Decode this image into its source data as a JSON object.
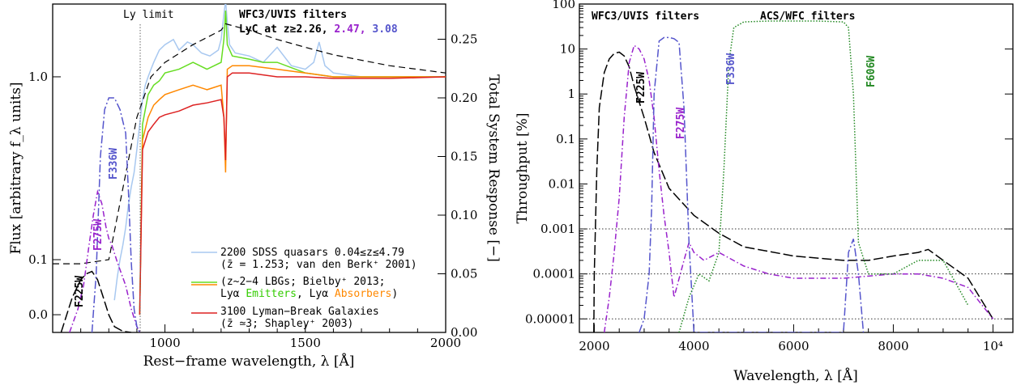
{
  "chart_data": [
    {
      "type": "line",
      "title": "",
      "xlabel": "Rest−frame wavelength, λ  [Å]",
      "ylabel": "Flux  [arbitrary f_λ units]",
      "ylabel_right": "Total System Response  [−]",
      "xlim": [
        600,
        2000
      ],
      "ylim_log": [
        0.04,
        2.5
      ],
      "ylim_right": [
        0,
        0.28
      ],
      "x_ticks": [
        "1000",
        "1500",
        "2000"
      ],
      "y_ticks": [
        "0.0",
        "0.1",
        "1.0"
      ],
      "y_ticks_right": [
        "0.00",
        "0.05",
        "0.10",
        "0.15",
        "0.20",
        "0.25"
      ],
      "annotations": {
        "ly_limit": "Ly limit",
        "filters_title": "WFC3/UVIS filters",
        "lyc_prefix": "LyC at z≥",
        "z1": "2.26,",
        "z2": "2.47,",
        "z3": "3.08",
        "f225w": "F225W",
        "f275w": "F275W",
        "f336w": "F336W"
      },
      "legend": [
        {
          "line1": "2200 SDSS quasars 0.04≤z≤4.79",
          "line2": "(z̄ = 1.253; van den Berk⁺ 2001)",
          "color": "#a8c8f0"
        },
        {
          "line1": "(z~2−4 LBGs; Bielby⁺ 2013;",
          "line2a": "Lyα ",
          "line2b": "Emitters",
          "line2c": ", Lyα ",
          "line2d": "Absorbers",
          "line2e": ")",
          "color": "#66dd22",
          "color2": "#ff8800"
        },
        {
          "line1": "3100 Lyman−Break Galaxies",
          "line2": "(z̄ ≃3; Shapley⁺ 2003)",
          "color": "#dd2222"
        }
      ],
      "series": [
        {
          "name": "2200 SDSS quasars",
          "color": "#a8c8f0",
          "x": [
            820,
            830,
            840,
            850,
            860,
            870,
            880,
            890,
            900,
            910,
            920,
            930,
            940,
            950,
            960,
            980,
            1000,
            1030,
            1050,
            1080,
            1100,
            1130,
            1160,
            1190,
            1200,
            1210,
            1216,
            1222,
            1230,
            1250,
            1300,
            1350,
            1400,
            1450,
            1500,
            1530,
            1549,
            1570,
            1600,
            1700,
            1800,
            1900,
            2000
          ],
          "y": [
            0.06,
            0.08,
            0.1,
            0.12,
            0.15,
            0.2,
            0.25,
            0.3,
            0.4,
            0.55,
            0.75,
            0.9,
            1.0,
            1.1,
            1.2,
            1.4,
            1.5,
            1.6,
            1.4,
            1.55,
            1.5,
            1.35,
            1.3,
            1.4,
            1.6,
            2.2,
            2.6,
            2.0,
            1.5,
            1.35,
            1.3,
            1.2,
            1.45,
            1.15,
            1.1,
            1.2,
            1.55,
            1.15,
            1.05,
            1.0,
            1.0,
            1.0,
            1.0
          ]
        },
        {
          "name": "Lyα Emitters",
          "color": "#66dd22",
          "x": [
            910,
            920,
            940,
            960,
            980,
            1000,
            1050,
            1100,
            1150,
            1200,
            1210,
            1216,
            1222,
            1240,
            1300,
            1350,
            1400,
            1500,
            1600,
            1700,
            1800,
            1900,
            2000
          ],
          "y": [
            0.05,
            0.55,
            0.8,
            0.9,
            0.95,
            1.05,
            1.1,
            1.2,
            1.1,
            1.2,
            1.6,
            2.3,
            1.5,
            1.3,
            1.25,
            1.2,
            1.2,
            1.05,
            1.0,
            1.0,
            1.0,
            1.0,
            1.0
          ]
        },
        {
          "name": "Lyα Absorbers",
          "color": "#ff8800",
          "x": [
            910,
            920,
            940,
            960,
            980,
            1000,
            1050,
            1100,
            1150,
            1200,
            1210,
            1216,
            1222,
            1240,
            1300,
            1400,
            1500,
            1600,
            1700,
            1800,
            1900,
            2000
          ],
          "y": [
            0.05,
            0.45,
            0.6,
            0.7,
            0.75,
            0.8,
            0.85,
            0.9,
            0.85,
            0.9,
            0.6,
            0.3,
            1.1,
            1.15,
            1.15,
            1.1,
            1.05,
            1.0,
            1.0,
            1.0,
            1.0,
            1.0
          ]
        },
        {
          "name": "3100 Lyman-Break Galaxies",
          "color": "#dd2222",
          "x": [
            910,
            920,
            940,
            960,
            980,
            1000,
            1050,
            1100,
            1150,
            1200,
            1210,
            1216,
            1222,
            1240,
            1300,
            1400,
            1500,
            1600,
            1700,
            1800,
            1900,
            2000
          ],
          "y": [
            0.05,
            0.4,
            0.5,
            0.55,
            0.6,
            0.62,
            0.65,
            0.7,
            0.72,
            0.75,
            0.6,
            0.35,
            1.0,
            1.05,
            1.05,
            1.0,
            1.0,
            0.98,
            0.98,
            0.98,
            0.99,
            1.0
          ]
        },
        {
          "name": "power-law",
          "color": "#000000",
          "x": [
            600,
            700,
            800,
            900,
            950,
            1000,
            1100,
            1200,
            1216,
            1300,
            1400,
            1500,
            1600,
            1800,
            2000
          ],
          "y": [
            0.095,
            0.095,
            0.1,
            0.6,
            1.0,
            1.2,
            1.5,
            1.8,
            1.95,
            1.8,
            1.6,
            1.45,
            1.32,
            1.15,
            1.05
          ]
        },
        {
          "name": "F225W",
          "color": "#000000",
          "axis": "right",
          "x": [
            630,
            650,
            670,
            700,
            720,
            740,
            760,
            780,
            800,
            820,
            850,
            880
          ],
          "y": [
            0.0,
            0.015,
            0.03,
            0.045,
            0.05,
            0.052,
            0.045,
            0.03,
            0.015,
            0.005,
            0.001,
            0.0
          ]
        },
        {
          "name": "F275W",
          "color": "#9922cc",
          "axis": "right",
          "x": [
            660,
            690,
            710,
            730,
            745,
            760,
            775,
            790,
            800,
            810,
            830,
            860,
            880,
            900,
            912
          ],
          "y": [
            0.0,
            0.02,
            0.04,
            0.075,
            0.1,
            0.12,
            0.11,
            0.09,
            0.08,
            0.075,
            0.06,
            0.04,
            0.02,
            0.005,
            0.0
          ]
        },
        {
          "name": "F336W",
          "color": "#5555cc",
          "axis": "right",
          "x": [
            740,
            755,
            770,
            785,
            800,
            820,
            840,
            860,
            870,
            880,
            890,
            900,
            910
          ],
          "y": [
            0.0,
            0.05,
            0.15,
            0.19,
            0.2,
            0.2,
            0.19,
            0.17,
            0.12,
            0.06,
            0.02,
            0.005,
            0.0
          ]
        }
      ]
    },
    {
      "type": "line",
      "title": "",
      "xlabel": "Wavelength, λ  [Å]",
      "ylabel": "Throughput  [%]",
      "xlim": [
        1700,
        10400
      ],
      "ylim_log": [
        5e-06,
        100
      ],
      "x_ticks": [
        "2000",
        "4000",
        "6000",
        "8000",
        "10⁴"
      ],
      "y_ticks": [
        "0.00001",
        "0.0001",
        "0.001",
        "0.01",
        "0.1",
        "1",
        "10",
        "100"
      ],
      "hlines": [
        1e-05,
        0.0001,
        0.001
      ],
      "annotations": {
        "wfc3": "WFC3/UVIS filters",
        "acs": "ACS/WFC filters",
        "f225w": "F225W",
        "f275w": "F275W",
        "f336w": "F336W",
        "f606w": "F606W"
      },
      "series": [
        {
          "name": "F225W",
          "color": "#000000",
          "x": [
            1990,
            2000,
            2050,
            2100,
            2200,
            2300,
            2400,
            2500,
            2600,
            2700,
            2800,
            3000,
            3200,
            3500,
            4000,
            4500,
            5000,
            6000,
            7000,
            7500,
            8000,
            8500,
            8700,
            9000,
            9500,
            10000
          ],
          "y": [
            5e-06,
            0.0001,
            0.02,
            0.5,
            3,
            6,
            8,
            8.5,
            7,
            4,
            1.5,
            0.3,
            0.05,
            0.008,
            0.002,
            0.0008,
            0.0004,
            0.00025,
            0.0002,
            0.0002,
            0.00025,
            0.0003,
            0.00035,
            0.0002,
            8e-05,
            1e-05
          ]
        },
        {
          "name": "F275W",
          "color": "#9922cc",
          "x": [
            2200,
            2300,
            2400,
            2500,
            2600,
            2700,
            2800,
            2900,
            3000,
            3100,
            3200,
            3300,
            3400,
            3500,
            3600,
            3800,
            3900,
            4000,
            4200,
            4500,
            5000,
            5500,
            6000,
            7000,
            8000,
            8500,
            9000,
            9500,
            10000
          ],
          "y": [
            5e-06,
            3e-05,
            0.0003,
            0.005,
            0.3,
            5,
            12,
            10,
            6,
            2,
            0.3,
            0.02,
            0.002,
            0.0003,
            3e-05,
            0.0002,
            0.0005,
            0.0003,
            0.0002,
            0.0003,
            0.00015,
            0.0001,
            8e-05,
            8e-05,
            0.0001,
            0.0001,
            8e-05,
            5e-05,
            1e-05
          ]
        },
        {
          "name": "F336W",
          "color": "#5555cc",
          "x": [
            2900,
            3000,
            3100,
            3150,
            3200,
            3300,
            3400,
            3500,
            3600,
            3700,
            3800,
            3900,
            4000,
            7000,
            7100,
            7200,
            7300,
            7400
          ],
          "y": [
            5e-06,
            1e-05,
            0.0001,
            0.003,
            1,
            15,
            18,
            18,
            17,
            14,
            0.5,
            0.0005,
            5e-06,
            5e-06,
            0.0003,
            0.0006,
            0.0001,
            5e-06
          ]
        },
        {
          "name": "F606W",
          "color": "#228822",
          "x": [
            3700,
            3900,
            4100,
            4300,
            4500,
            4600,
            4700,
            4800,
            5000,
            5500,
            6000,
            6500,
            7000,
            7100,
            7200,
            7300,
            7500,
            8000,
            8500,
            9000,
            9500
          ],
          "y": [
            5e-06,
            3e-05,
            0.0001,
            7e-05,
            0.0003,
            0.02,
            5,
            30,
            40,
            42,
            42,
            42,
            40,
            30,
            1,
            0.0005,
            0.0001,
            0.0001,
            0.0002,
            0.0002,
            2e-05
          ]
        }
      ]
    }
  ]
}
